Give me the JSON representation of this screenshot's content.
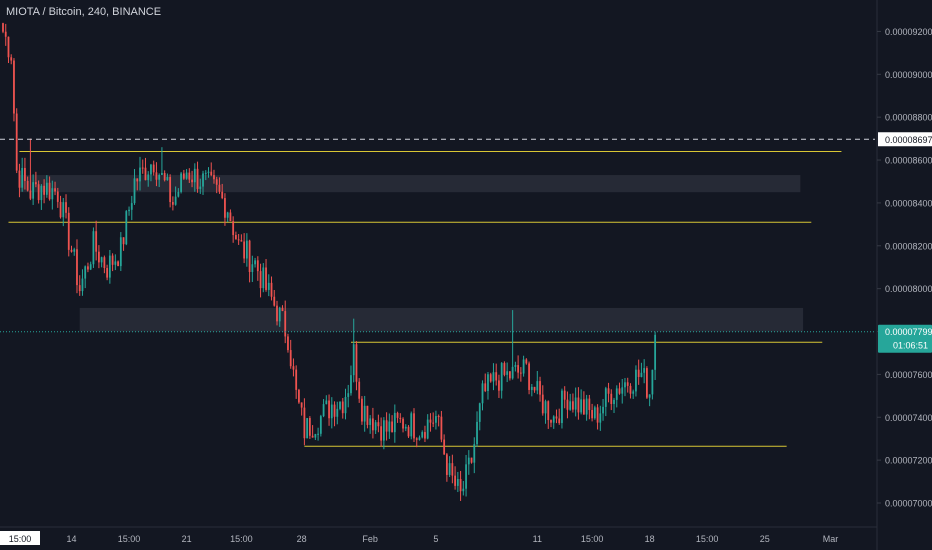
{
  "symbol_title": "MIOTA / Bitcoin, 240, BINANCE",
  "colors": {
    "background": "#131722",
    "up": "#26a69a",
    "down": "#ef5350",
    "level_line": "#d8c634",
    "zone": "#2a2e39",
    "axis_text": "#b2b5be",
    "price_label_bg": "#26a69a",
    "crosshair_label_bg": "#ffffff"
  },
  "chart_data": {
    "type": "candlestick",
    "title": "MIOTA / Bitcoin, 240, BINANCE",
    "ylim": [
      6.93e-05,
      9.3e-05
    ],
    "y_ticks": [
      "0.00009200",
      "0.00009000",
      "0.00008800",
      "0.00008600",
      "0.00008400",
      "0.00008200",
      "0.00008000",
      "0.00007800",
      "0.00007600",
      "0.00007400",
      "0.00007200",
      "0.00007000"
    ],
    "x_ticks": [
      "15:00",
      "14",
      "15:00",
      "21",
      "15:00",
      "28",
      "Feb",
      "5",
      "11",
      "15:00",
      "18",
      "15:00",
      "25",
      "Mar"
    ],
    "current_price": "0.00007799",
    "countdown": "01:06:51",
    "crosshair_price": "0.00008697",
    "crosshair_time": "15:00",
    "horizontal_levels": [
      {
        "price": 8.64e-05,
        "from_index": 6,
        "to_index": 306
      },
      {
        "price": 8.31e-05,
        "from_index": 2,
        "to_index": 295
      },
      {
        "price": 7.75e-05,
        "from_index": 127,
        "to_index": 299
      },
      {
        "price": 7.265e-05,
        "from_index": 110,
        "to_index": 286
      }
    ],
    "zones": [
      {
        "low": 8.45e-05,
        "high": 8.53e-05,
        "from_index": 6,
        "to_index": 291
      },
      {
        "low": 7.8e-05,
        "high": 7.91e-05,
        "from_index": 28,
        "to_index": 292
      }
    ],
    "anchors": [
      [
        0,
        9.2e-05
      ],
      [
        3,
        9.1e-05
      ],
      [
        5,
        8.55e-05
      ],
      [
        10,
        8.45e-05
      ],
      [
        14,
        8.48e-05
      ],
      [
        20,
        8.45e-05
      ],
      [
        25,
        8.18e-05
      ],
      [
        28,
        8e-05
      ],
      [
        33,
        8.2e-05
      ],
      [
        38,
        8.1e-05
      ],
      [
        43,
        8.18e-05
      ],
      [
        48,
        8.5e-05
      ],
      [
        55,
        8.6e-05
      ],
      [
        62,
        8.4e-05
      ],
      [
        67,
        8.55e-05
      ],
      [
        73,
        8.5e-05
      ],
      [
        78,
        8.45e-05
      ],
      [
        82,
        8.38e-05
      ],
      [
        86,
        8.2e-05
      ],
      [
        92,
        8.12e-05
      ],
      [
        96,
        8e-05
      ],
      [
        100,
        7.9e-05
      ],
      [
        104,
        7.78e-05
      ],
      [
        107,
        7.5e-05
      ],
      [
        110,
        7.34e-05
      ],
      [
        116,
        7.4e-05
      ],
      [
        120,
        7.46e-05
      ],
      [
        124,
        7.48e-05
      ],
      [
        126,
        7.55e-05
      ],
      [
        128,
        7.7e-05
      ],
      [
        131,
        7.45e-05
      ],
      [
        136,
        7.38e-05
      ],
      [
        140,
        7.34e-05
      ],
      [
        146,
        7.38e-05
      ],
      [
        152,
        7.35e-05
      ],
      [
        158,
        7.4e-05
      ],
      [
        163,
        7.13e-05
      ],
      [
        167,
        7.03e-05
      ],
      [
        171,
        7.2e-05
      ],
      [
        175,
        7.5e-05
      ],
      [
        180,
        7.58e-05
      ],
      [
        186,
        7.6e-05
      ],
      [
        191,
        7.62e-05
      ],
      [
        195,
        7.5e-05
      ],
      [
        201,
        7.4e-05
      ],
      [
        206,
        7.5e-05
      ],
      [
        211,
        7.45e-05
      ],
      [
        216,
        7.4e-05
      ],
      [
        222,
        7.52e-05
      ],
      [
        228,
        7.57e-05
      ],
      [
        233,
        7.6e-05
      ],
      [
        236,
        7.52e-05
      ],
      [
        238,
        7.8e-05
      ]
    ],
    "wick_spikes": [
      {
        "index": 10,
        "high": 8.7e-05
      },
      {
        "index": 58,
        "high": 8.66e-05
      },
      {
        "index": 128,
        "high": 7.86e-05
      },
      {
        "index": 186,
        "high": 7.9e-05
      },
      {
        "index": 240,
        "high": 7.88e-05
      }
    ]
  }
}
